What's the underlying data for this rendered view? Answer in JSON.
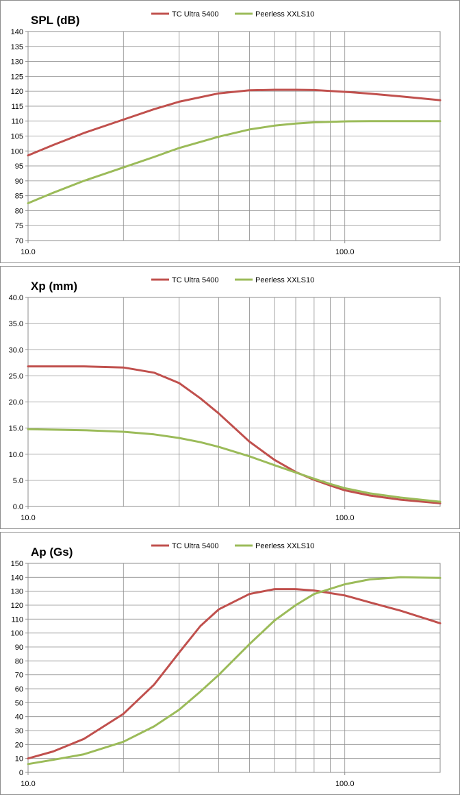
{
  "colors": {
    "tc": "#c0504d",
    "peerless": "#9bbb59",
    "grid": "#8c8c8c",
    "border": "#8c8c8c"
  },
  "legend": {
    "tc": "TC Ultra 5400",
    "peerless": "Peerless XXLS10"
  },
  "chart_data": [
    {
      "type": "line",
      "title": "SPL (dB)",
      "xscale": "log",
      "xlim": [
        10,
        200
      ],
      "ylim": [
        70,
        140
      ],
      "ystep": 5,
      "ydecimals": 0,
      "grid": true,
      "legend_position": "top",
      "xticks": [
        {
          "v": 10,
          "label": "10.0"
        },
        {
          "v": 100,
          "label": "100.0"
        }
      ],
      "series": [
        {
          "name": "TC Ultra 5400",
          "x": [
            10,
            12,
            15,
            20,
            25,
            30,
            40,
            50,
            60,
            70,
            80,
            100,
            120,
            150,
            200
          ],
          "y": [
            98.5,
            102,
            106,
            110.5,
            114,
            116.5,
            119.3,
            120.3,
            120.5,
            120.5,
            120.4,
            119.8,
            119.2,
            118.3,
            117
          ]
        },
        {
          "name": "Peerless XXLS10",
          "x": [
            10,
            12,
            15,
            20,
            25,
            30,
            40,
            50,
            60,
            70,
            80,
            100,
            120,
            150,
            200
          ],
          "y": [
            82.5,
            86,
            90,
            94.5,
            98,
            101,
            104.8,
            107.2,
            108.5,
            109.2,
            109.6,
            109.9,
            110,
            110,
            110
          ]
        }
      ]
    },
    {
      "type": "line",
      "title": "Xp (mm)",
      "xscale": "log",
      "xlim": [
        10,
        200
      ],
      "ylim": [
        0,
        40
      ],
      "ystep": 5,
      "ydecimals": 1,
      "grid": true,
      "legend_position": "top",
      "xticks": [
        {
          "v": 10,
          "label": "10.0"
        },
        {
          "v": 100,
          "label": "100.0"
        }
      ],
      "series": [
        {
          "name": "TC Ultra 5400",
          "x": [
            10,
            15,
            20,
            25,
            30,
            35,
            40,
            50,
            60,
            70,
            80,
            90,
            100,
            120,
            150,
            200
          ],
          "y": [
            26.8,
            26.8,
            26.6,
            25.6,
            23.6,
            20.7,
            17.8,
            12.4,
            8.9,
            6.6,
            5.1,
            4.0,
            3.1,
            2.1,
            1.3,
            0.6
          ]
        },
        {
          "name": "Peerless XXLS10",
          "x": [
            10,
            15,
            20,
            25,
            30,
            35,
            40,
            50,
            60,
            70,
            80,
            90,
            100,
            120,
            150,
            200
          ],
          "y": [
            14.8,
            14.6,
            14.3,
            13.8,
            13.1,
            12.3,
            11.4,
            9.6,
            7.9,
            6.5,
            5.3,
            4.3,
            3.5,
            2.5,
            1.7,
            0.9
          ]
        }
      ]
    },
    {
      "type": "line",
      "title": "Ap (Gs)",
      "xscale": "log",
      "xlim": [
        10,
        200
      ],
      "ylim": [
        0,
        150
      ],
      "ystep": 10,
      "ydecimals": 0,
      "grid": true,
      "legend_position": "top",
      "xticks": [
        {
          "v": 10,
          "label": "10.0"
        },
        {
          "v": 100,
          "label": "100.0"
        }
      ],
      "series": [
        {
          "name": "TC Ultra 5400",
          "x": [
            10,
            12,
            15,
            20,
            25,
            30,
            35,
            40,
            50,
            60,
            70,
            80,
            100,
            120,
            150,
            200
          ],
          "y": [
            10,
            15,
            24,
            42,
            63,
            86,
            105,
            117,
            128,
            131.5,
            131.5,
            130.5,
            127,
            122,
            116,
            107
          ]
        },
        {
          "name": "Peerless XXLS10",
          "x": [
            10,
            12,
            15,
            20,
            25,
            30,
            35,
            40,
            50,
            60,
            70,
            80,
            100,
            120,
            150,
            200
          ],
          "y": [
            6,
            9,
            13,
            22,
            33,
            45,
            58,
            70,
            92,
            109,
            120,
            128,
            135,
            138.5,
            140,
            139.5
          ]
        }
      ]
    }
  ]
}
